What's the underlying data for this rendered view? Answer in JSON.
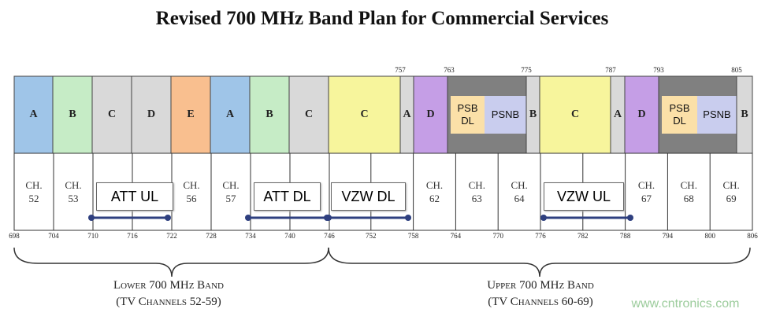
{
  "title": "Revised 700 MHz Band Plan for Commercial Services",
  "top_markers": [
    "757",
    "763",
    "775",
    "787",
    "793",
    "805"
  ],
  "blocks": [
    "A",
    "B",
    "C",
    "D",
    "E",
    "A",
    "B",
    "C",
    "C",
    "A",
    "D",
    "PSB DL",
    "PSNB",
    "B",
    "C",
    "A",
    "D",
    "PSB DL",
    "PSNB",
    "B"
  ],
  "channels": [
    {
      "label": "CH.",
      "number": "52"
    },
    {
      "label": "CH.",
      "number": "53"
    },
    null,
    null,
    {
      "label": "CH.",
      "number": "56"
    },
    {
      "label": "CH.",
      "number": "57"
    },
    null,
    null,
    null,
    null,
    {
      "label": "CH.",
      "number": "62"
    },
    {
      "label": "CH.",
      "number": "63"
    },
    {
      "label": "CH.",
      "number": "64"
    },
    null,
    null,
    {
      "label": "CH.",
      "number": "67"
    },
    {
      "label": "CH.",
      "number": "68"
    },
    {
      "label": "CH.",
      "number": "69"
    }
  ],
  "frequencies": [
    "698",
    "704",
    "710",
    "716",
    "722",
    "728",
    "734",
    "740",
    "746",
    "752",
    "758",
    "764",
    "770",
    "776",
    "782",
    "788",
    "794",
    "800",
    "806"
  ],
  "allocations": [
    "ATT UL",
    "ATT DL",
    "VZW DL",
    "VZW UL"
  ],
  "lower_band": {
    "name": "Lower 700 MHz Band",
    "channels": "(TV Channels 52-59)"
  },
  "upper_band": {
    "name": "Upper 700 MHz Band",
    "channels": "(TV Channels 60-69)"
  },
  "watermark": "www.cntronics.com"
}
